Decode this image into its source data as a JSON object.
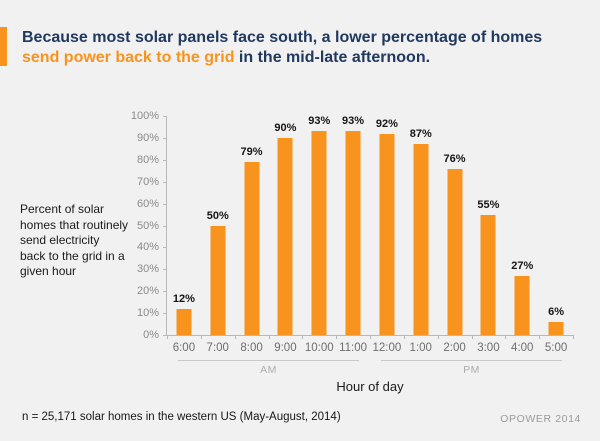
{
  "header": {
    "title_line1": "Because most solar panels face south, a lower percentage of homes",
    "title_line2_highlight": "send power back to the grid",
    "title_line2_rest": " in the mid-late afternoon."
  },
  "side_label": "Percent of solar\nhomes that routinely\nsend electricity\nback to the grid in a\ngiven hour",
  "chart_data": {
    "type": "bar",
    "categories": [
      "6:00",
      "7:00",
      "8:00",
      "9:00",
      "10:00",
      "11:00",
      "12:00",
      "1:00",
      "2:00",
      "3:00",
      "4:00",
      "5:00"
    ],
    "values": [
      12,
      50,
      79,
      90,
      93,
      93,
      92,
      87,
      76,
      55,
      27,
      6
    ],
    "value_labels": [
      "12%",
      "50%",
      "79%",
      "90%",
      "93%",
      "93%",
      "92%",
      "87%",
      "76%",
      "55%",
      "27%",
      "6%"
    ],
    "yticks": [
      "100%",
      "90%",
      "80%",
      "70%",
      "60%",
      "50%",
      "40%",
      "30%",
      "20%",
      "10%",
      "0%"
    ],
    "ylim": [
      0,
      100
    ],
    "xlabel": "Hour of day",
    "grid": false,
    "legend": false,
    "bar_color": "#F8941E",
    "group_labels": [
      {
        "label": "AM",
        "col_start": 0,
        "col_end": 5
      },
      {
        "label": "PM",
        "col_start": 6,
        "col_end": 11
      }
    ]
  },
  "footer": {
    "note": "n = 25,171 solar homes in the western US (May-August, 2014)",
    "brand": "OPOWER 2014"
  },
  "colors": {
    "background": "#F1F1F2",
    "accent_orange": "#F8941E",
    "title_navy": "#21395F",
    "axis_gray": "#B8B8B8"
  }
}
